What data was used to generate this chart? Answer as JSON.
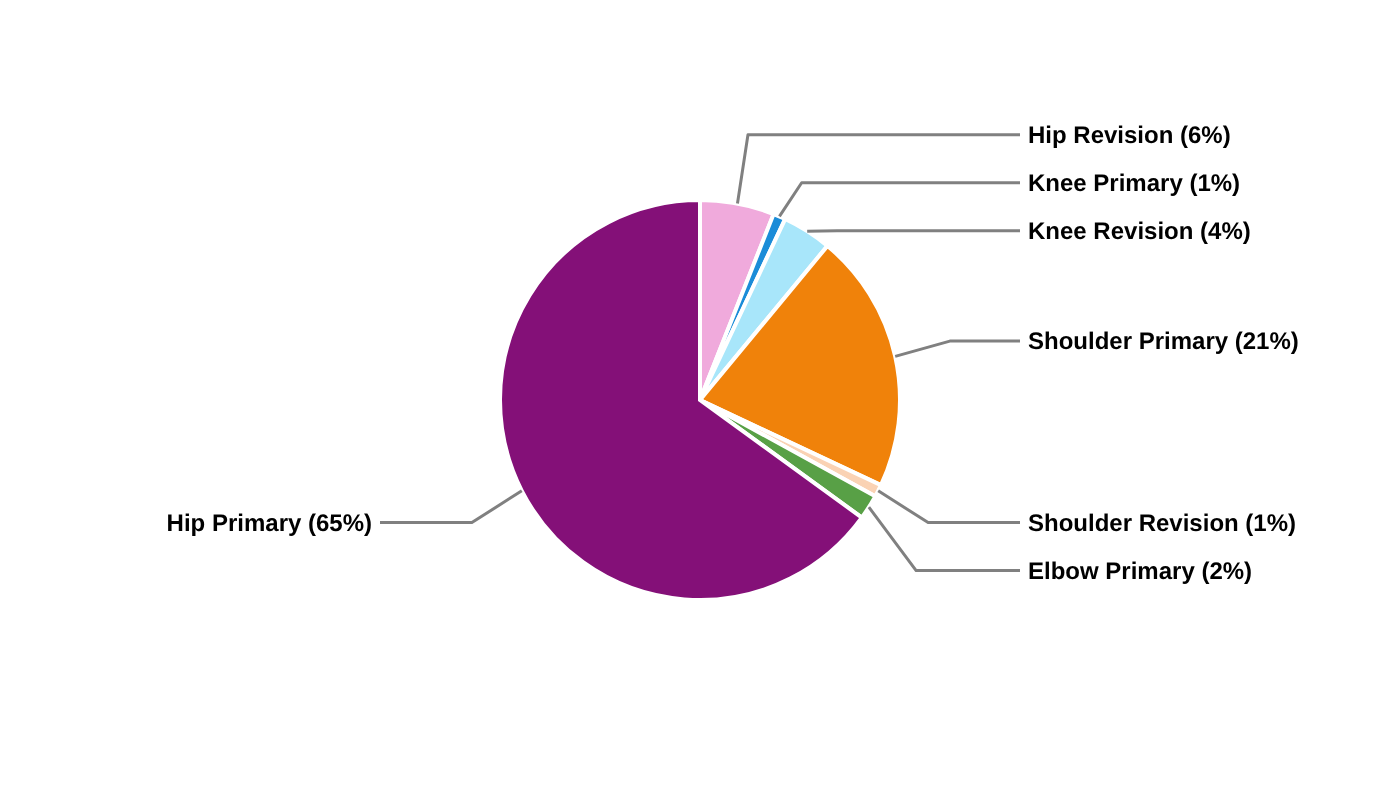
{
  "chart_data": {
    "type": "pie",
    "categories": [
      "Hip Revision (6%)",
      "Knee Primary (1%)",
      "Knee Revision (4%)",
      "Shoulder Primary (21%)",
      "Shoulder Revision (1%)",
      "Elbow Primary (2%)",
      "Hip Primary (65%)"
    ],
    "values": [
      6,
      1,
      4,
      21,
      1,
      2,
      65
    ],
    "colors": [
      "#f0aadc",
      "#1a8cd8",
      "#a8e6fa",
      "#f0820a",
      "#fad2b4",
      "#58a046",
      "#841078"
    ]
  }
}
